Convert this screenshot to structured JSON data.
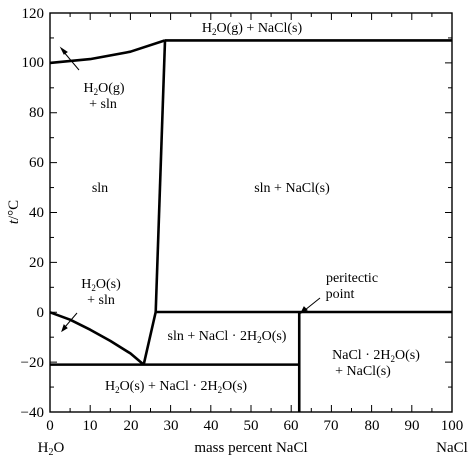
{
  "axes": {
    "x": {
      "label": "mass percent NaCl",
      "min": 0,
      "max": 100,
      "tick_labels": [
        "0",
        "10",
        "20",
        "30",
        "40",
        "50",
        "60",
        "70",
        "80",
        "90",
        "100"
      ],
      "left_end_label": "H2O",
      "right_end_label": "NaCl"
    },
    "y": {
      "label_italic": "t",
      "label_unit": "/°C",
      "min": -40,
      "max": 120,
      "tick_labels": [
        "120",
        "100",
        "80",
        "60",
        "40",
        "20",
        "0",
        "−20",
        "−40"
      ]
    }
  },
  "regions": {
    "top": {
      "prefix": "H",
      "sub": "2",
      "suffix": "O(g) + NaCl(s)"
    },
    "vapor_sln": {
      "line1_prefix": "H",
      "line1_sub": "2",
      "line1_suffix": "O(g)",
      "line2": "+ sln"
    },
    "sln": "sln",
    "sln_nacl": "sln + NaCl(s)",
    "ice_sln": {
      "line1_prefix": "H",
      "line1_sub": "2",
      "line1_suffix": "O(s)",
      "line2": "+ sln"
    },
    "sln_hydrate": {
      "prefix": "sln + NaCl · 2H",
      "sub": "2",
      "suffix": "O(s)"
    },
    "hydrate_nacl": {
      "line1_prefix": "NaCl · 2H",
      "line1_sub": "2",
      "line1_suffix": "O(s)",
      "line2": "+ NaCl(s)"
    },
    "ice_hydrate": {
      "prefix": "H",
      "sub": "2",
      "suffix1": "O(s) + NaCl · 2H",
      "sub2": "2",
      "suffix2": "O(s)"
    }
  },
  "peritectic_label": {
    "line1": "peritectic",
    "line2": "point"
  },
  "phase_lines": {
    "vapor_line_t": 109,
    "eutectic_line_t": -21,
    "peritectic_line_t": 0.1,
    "peritectic_x": 62,
    "eutectic_x": 23.3,
    "boiling_water_t": 100,
    "nacl_solubility_curve": [
      {
        "x": 28.6,
        "t": 109
      },
      {
        "x": 26.3,
        "t": 0.1
      }
    ],
    "peritectic_curve": [
      {
        "x": 26.3,
        "t": 0.1
      },
      {
        "x": 23.3,
        "t": -21
      }
    ],
    "freezing_curve": [
      {
        "x": 0,
        "t": 0
      },
      {
        "x": 5,
        "t": -3
      },
      {
        "x": 10,
        "t": -7
      },
      {
        "x": 15,
        "t": -11.5
      },
      {
        "x": 20,
        "t": -16.5
      },
      {
        "x": 23.3,
        "t": -21
      }
    ],
    "boiling_curve": [
      {
        "x": 0,
        "t": 100
      },
      {
        "x": 10,
        "t": 101.5
      },
      {
        "x": 20,
        "t": 104.5
      },
      {
        "x": 28.6,
        "t": 109
      }
    ]
  }
}
